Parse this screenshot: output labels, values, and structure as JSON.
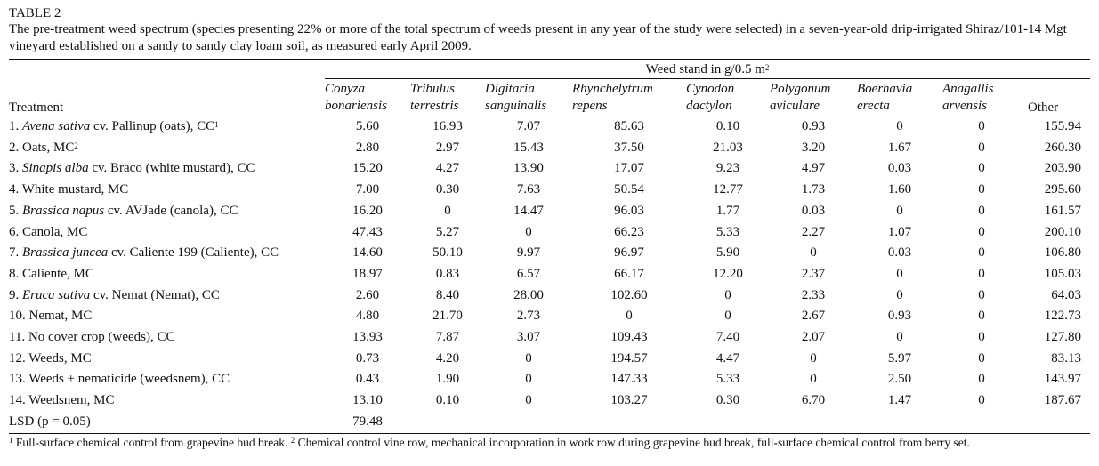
{
  "table_label": "TABLE 2",
  "caption": "The pre-treatment weed spectrum (species presenting 22% or more of the total spectrum of weeds present in any year of the study were selected) in a seven-year-old drip-irrigated Shiraz/101-14 Mgt vineyard established on a sandy to sandy clay loam soil, as measured early April 2009.",
  "stand_header": "Weed stand in g/0.5 m",
  "stand_header_sup": "2",
  "treatment_header": "Treatment",
  "species": [
    {
      "genus": "Conyza",
      "epithet": "bonariensis"
    },
    {
      "genus": "Tribulus",
      "epithet": "terrestris"
    },
    {
      "genus": "Digitaria",
      "epithet": "sanguinalis"
    },
    {
      "genus": "Rhynchelytrum",
      "epithet": "repens"
    },
    {
      "genus": "Cynodon",
      "epithet": "dactylon"
    },
    {
      "genus": "Polygonum",
      "epithet": "aviculare"
    },
    {
      "genus": "Boerhavia",
      "epithet": "erecta"
    },
    {
      "genus": "Anagallis",
      "epithet": "arvensis"
    }
  ],
  "other_header": "Other",
  "rows": [
    {
      "num": "1. ",
      "ital": "Avena sativa",
      "rest": " cv. Pallinup (oats), CC",
      "sup": "1",
      "vals": [
        "5.60",
        "16.93",
        "7.07",
        "85.63",
        "0.10",
        "0.93",
        "0",
        "0",
        "155.94"
      ]
    },
    {
      "num": "2. ",
      "ital": "",
      "rest": "Oats, MC",
      "sup": "2",
      "vals": [
        "2.80",
        "2.97",
        "15.43",
        "37.50",
        "21.03",
        "3.20",
        "1.67",
        "0",
        "260.30"
      ]
    },
    {
      "num": "3. ",
      "ital": "Sinapis alba",
      "rest": " cv. Braco (white mustard), CC",
      "sup": "",
      "vals": [
        "15.20",
        "4.27",
        "13.90",
        "17.07",
        "9.23",
        "4.97",
        "0.03",
        "0",
        "203.90"
      ]
    },
    {
      "num": "4. ",
      "ital": "",
      "rest": "White mustard, MC",
      "sup": "",
      "vals": [
        "7.00",
        "0.30",
        "7.63",
        "50.54",
        "12.77",
        "1.73",
        "1.60",
        "0",
        "295.60"
      ]
    },
    {
      "num": "5. ",
      "ital": "Brassica napus",
      "rest": " cv. AVJade (canola), CC",
      "sup": "",
      "vals": [
        "16.20",
        "0",
        "14.47",
        "96.03",
        "1.77",
        "0.03",
        "0",
        "0",
        "161.57"
      ]
    },
    {
      "num": "6. ",
      "ital": "",
      "rest": "Canola, MC",
      "sup": "",
      "vals": [
        "47.43",
        "5.27",
        "0",
        "66.23",
        "5.33",
        "2.27",
        "1.07",
        "0",
        "200.10"
      ]
    },
    {
      "num": "7. ",
      "ital": "Brassica juncea",
      "rest": " cv. Caliente 199 (Caliente), CC",
      "sup": "",
      "vals": [
        "14.60",
        "50.10",
        "9.97",
        "96.97",
        "5.90",
        "0",
        "0.03",
        "0",
        "106.80"
      ]
    },
    {
      "num": "8. ",
      "ital": "",
      "rest": "Caliente, MC",
      "sup": "",
      "vals": [
        "18.97",
        "0.83",
        "6.57",
        "66.17",
        "12.20",
        "2.37",
        "0",
        "0",
        "105.03"
      ]
    },
    {
      "num": "9. ",
      "ital": "Eruca sativa",
      "rest": " cv. Nemat (Nemat), CC",
      "sup": "",
      "vals": [
        "2.60",
        "8.40",
        "28.00",
        "102.60",
        "0",
        "2.33",
        "0",
        "0",
        "64.03"
      ]
    },
    {
      "num": "10. ",
      "ital": "",
      "rest": "Nemat, MC",
      "sup": "",
      "vals": [
        "4.80",
        "21.70",
        "2.73",
        "0",
        "0",
        "2.67",
        "0.93",
        "0",
        "122.73"
      ]
    },
    {
      "num": "11. ",
      "ital": "",
      "rest": "No cover crop (weeds), CC",
      "sup": "",
      "vals": [
        "13.93",
        "7.87",
        "3.07",
        "109.43",
        "7.40",
        "2.07",
        "0",
        "0",
        "127.80"
      ]
    },
    {
      "num": "12. ",
      "ital": "",
      "rest": "Weeds, MC",
      "sup": "",
      "vals": [
        "0.73",
        "4.20",
        "0",
        "194.57",
        "4.47",
        "0",
        "5.97",
        "0",
        "83.13"
      ]
    },
    {
      "num": "13. ",
      "ital": "",
      "rest": "Weeds + nematicide (weedsnem), CC",
      "sup": "",
      "vals": [
        "0.43",
        "1.90",
        "0",
        "147.33",
        "5.33",
        "0",
        "2.50",
        "0",
        "143.97"
      ]
    },
    {
      "num": "14. ",
      "ital": "",
      "rest": "Weedsnem, MC",
      "sup": "",
      "vals": [
        "13.10",
        "0.10",
        "0",
        "103.27",
        "0.30",
        "6.70",
        "1.47",
        "0",
        "187.67"
      ]
    }
  ],
  "lsd": {
    "label": "LSD (p = 0.05)",
    "value": "79.48"
  },
  "footnotes": [
    {
      "sup": "1",
      "text": " Full-surface chemical control from grapevine bud break. "
    },
    {
      "sup": "2",
      "text": " Chemical control vine row, mechanical incorporation in work row during grapevine bud break, full-surface chemical control from berry set."
    }
  ]
}
